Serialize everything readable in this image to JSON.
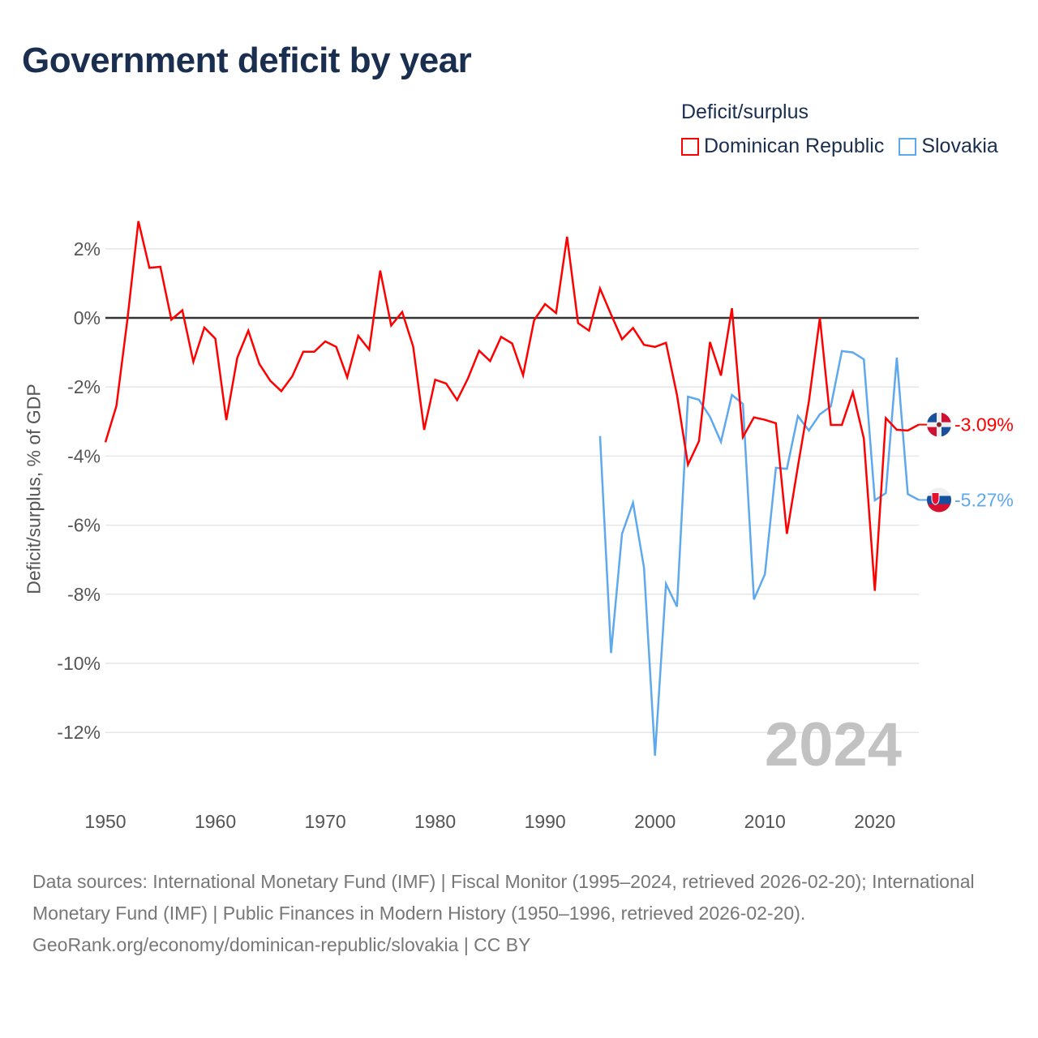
{
  "title": "Government deficit by year",
  "legend": {
    "title": "Deficit/surplus",
    "items": [
      {
        "label": "Dominican Republic",
        "color": "#ff0000"
      },
      {
        "label": "Slovakia",
        "color": "#5ea8ee"
      }
    ]
  },
  "footer": {
    "sources": "Data sources: International Monetary Fund (IMF) | Fiscal Monitor (1995–2024, retrieved 2026-02-20); International Monetary Fund (IMF) | Public Finances in Modern History (1950–1996, retrieved 2026-02-20).",
    "credit": "GeoRank.org/economy/dominican-republic/slovakia | CC BY"
  },
  "chart_data": {
    "type": "line",
    "title": "Government deficit by year",
    "xlabel": "",
    "ylabel": "Deficit/surplus, % of GDP",
    "xlim": [
      1950,
      2024
    ],
    "ylim": [
      -13.5,
      3.0
    ],
    "grid": true,
    "legend_position": "top-right",
    "watermark_year": "2024",
    "x_ticks": [
      1950,
      1960,
      1970,
      1980,
      1990,
      2000,
      2010,
      2020
    ],
    "x_tick_labels": [
      "1950",
      "1960",
      "1970",
      "1980",
      "1990",
      "2000",
      "2010",
      "2020"
    ],
    "y_ticks": [
      2,
      0,
      -2,
      -4,
      -6,
      -8,
      -10,
      -12
    ],
    "y_tick_labels": [
      "2%",
      "0%",
      "-2%",
      "-4%",
      "-6%",
      "-8%",
      "-10%",
      "-12%"
    ],
    "series": [
      {
        "name": "Dominican Republic",
        "color": "#ff0000",
        "end_label": "-3.09%",
        "x_start": 1950,
        "values": [
          -3.6,
          -2.55,
          -0.05,
          2.8,
          1.45,
          1.48,
          -0.05,
          0.22,
          -1.27,
          -0.28,
          -0.6,
          -2.96,
          -1.15,
          -0.37,
          -1.33,
          -1.82,
          -2.12,
          -1.69,
          -0.98,
          -0.98,
          -0.68,
          -0.84,
          -1.72,
          -0.52,
          -0.92,
          1.37,
          -0.22,
          0.17,
          -0.83,
          -3.24,
          -1.79,
          -1.9,
          -2.38,
          -1.74,
          -0.95,
          -1.25,
          -0.55,
          -0.74,
          -1.66,
          -0.07,
          0.4,
          0.14,
          2.35,
          -0.15,
          -0.37,
          0.85,
          0.1,
          -0.62,
          -0.29,
          -0.78,
          -0.84,
          -0.72,
          -2.23,
          -4.25,
          -3.57,
          -0.7,
          -1.67,
          0.28,
          -3.45,
          -2.88,
          -2.95,
          -3.05,
          -6.25,
          -4.3,
          -2.42,
          0.0,
          -3.1,
          -3.1,
          -2.15,
          -3.49,
          -7.9,
          -2.9,
          -3.24,
          -3.26,
          -3.09
        ]
      },
      {
        "name": "Slovakia",
        "color": "#5ea8ee",
        "end_label": "-5.27%",
        "x_start": 1995,
        "values": [
          -3.42,
          -9.7,
          -6.25,
          -5.35,
          -7.23,
          -12.67,
          -7.7,
          -8.36,
          -2.28,
          -2.37,
          -2.86,
          -3.59,
          -2.23,
          -2.49,
          -8.15,
          -7.42,
          -4.34,
          -4.37,
          -2.84,
          -3.26,
          -2.79,
          -2.56,
          -0.96,
          -1.0,
          -1.2,
          -5.28,
          -5.07,
          -1.15,
          -5.1,
          -5.27
        ]
      }
    ]
  }
}
